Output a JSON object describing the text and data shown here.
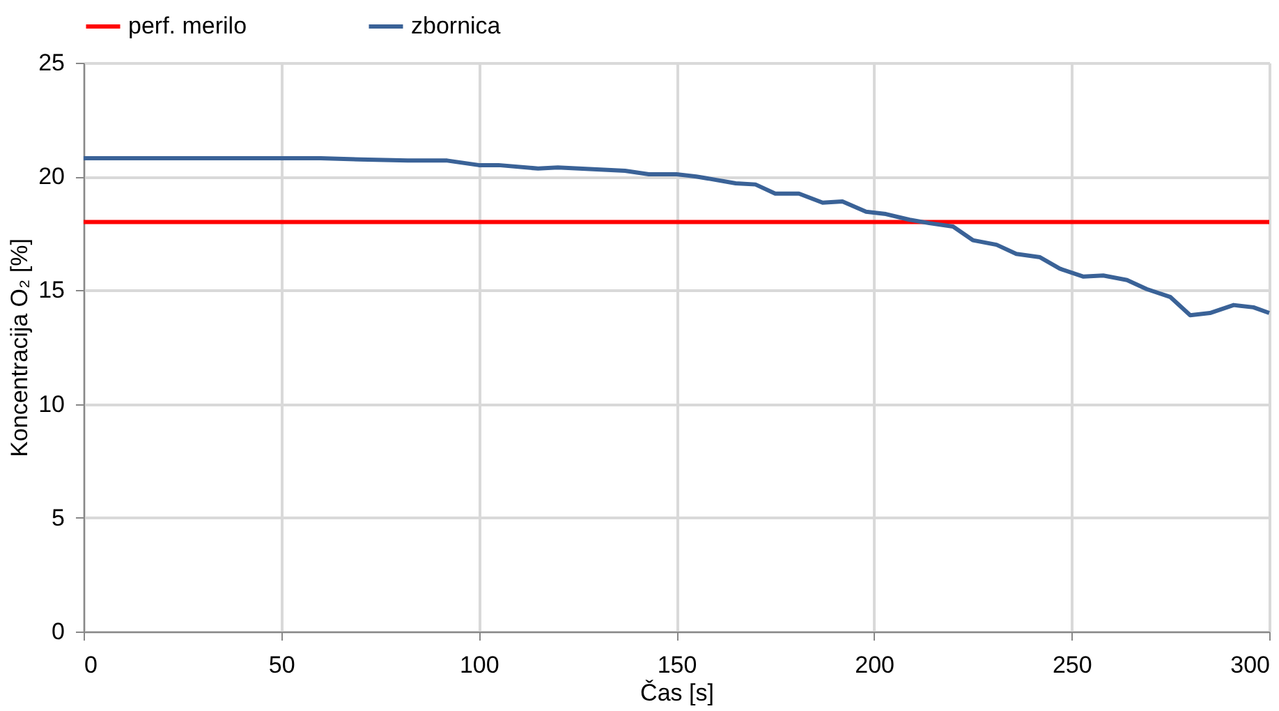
{
  "chart_data": {
    "type": "line",
    "xlabel": "Čas  [s]",
    "ylabel": "Koncentracija O₂ [%]",
    "xlim": [
      0,
      300
    ],
    "xticks": [
      0,
      50,
      100,
      150,
      200,
      250,
      300
    ],
    "ylim": [
      0,
      25
    ],
    "yticks": [
      0,
      5,
      10,
      15,
      20,
      25
    ],
    "grid": true,
    "legend": "top",
    "marker": "none",
    "line_style": "solid",
    "series": [
      {
        "name": "perf. merilo",
        "color": "#ff0000",
        "x": [
          0,
          300
        ],
        "values": [
          18,
          18
        ]
      },
      {
        "name": "zbornica",
        "color": "#3a6297",
        "x": [
          0,
          60,
          70,
          82,
          92,
          100,
          105,
          115,
          120,
          137,
          143,
          150,
          155,
          165,
          170,
          175,
          181,
          187,
          192,
          198,
          203,
          209,
          214,
          220,
          225,
          231,
          236,
          242,
          247,
          253,
          258,
          264,
          269,
          275,
          280,
          285,
          291,
          296,
          300
        ],
        "values": [
          20.8,
          20.8,
          20.75,
          20.7,
          20.7,
          20.5,
          20.5,
          20.35,
          20.4,
          20.25,
          20.1,
          20.1,
          20.0,
          19.7,
          19.65,
          19.25,
          19.25,
          18.85,
          18.9,
          18.45,
          18.35,
          18.1,
          17.95,
          17.8,
          17.2,
          17.0,
          16.6,
          16.45,
          15.95,
          15.6,
          15.65,
          15.45,
          15.05,
          14.7,
          13.9,
          14.0,
          14.35,
          14.25,
          14.0
        ]
      }
    ]
  }
}
